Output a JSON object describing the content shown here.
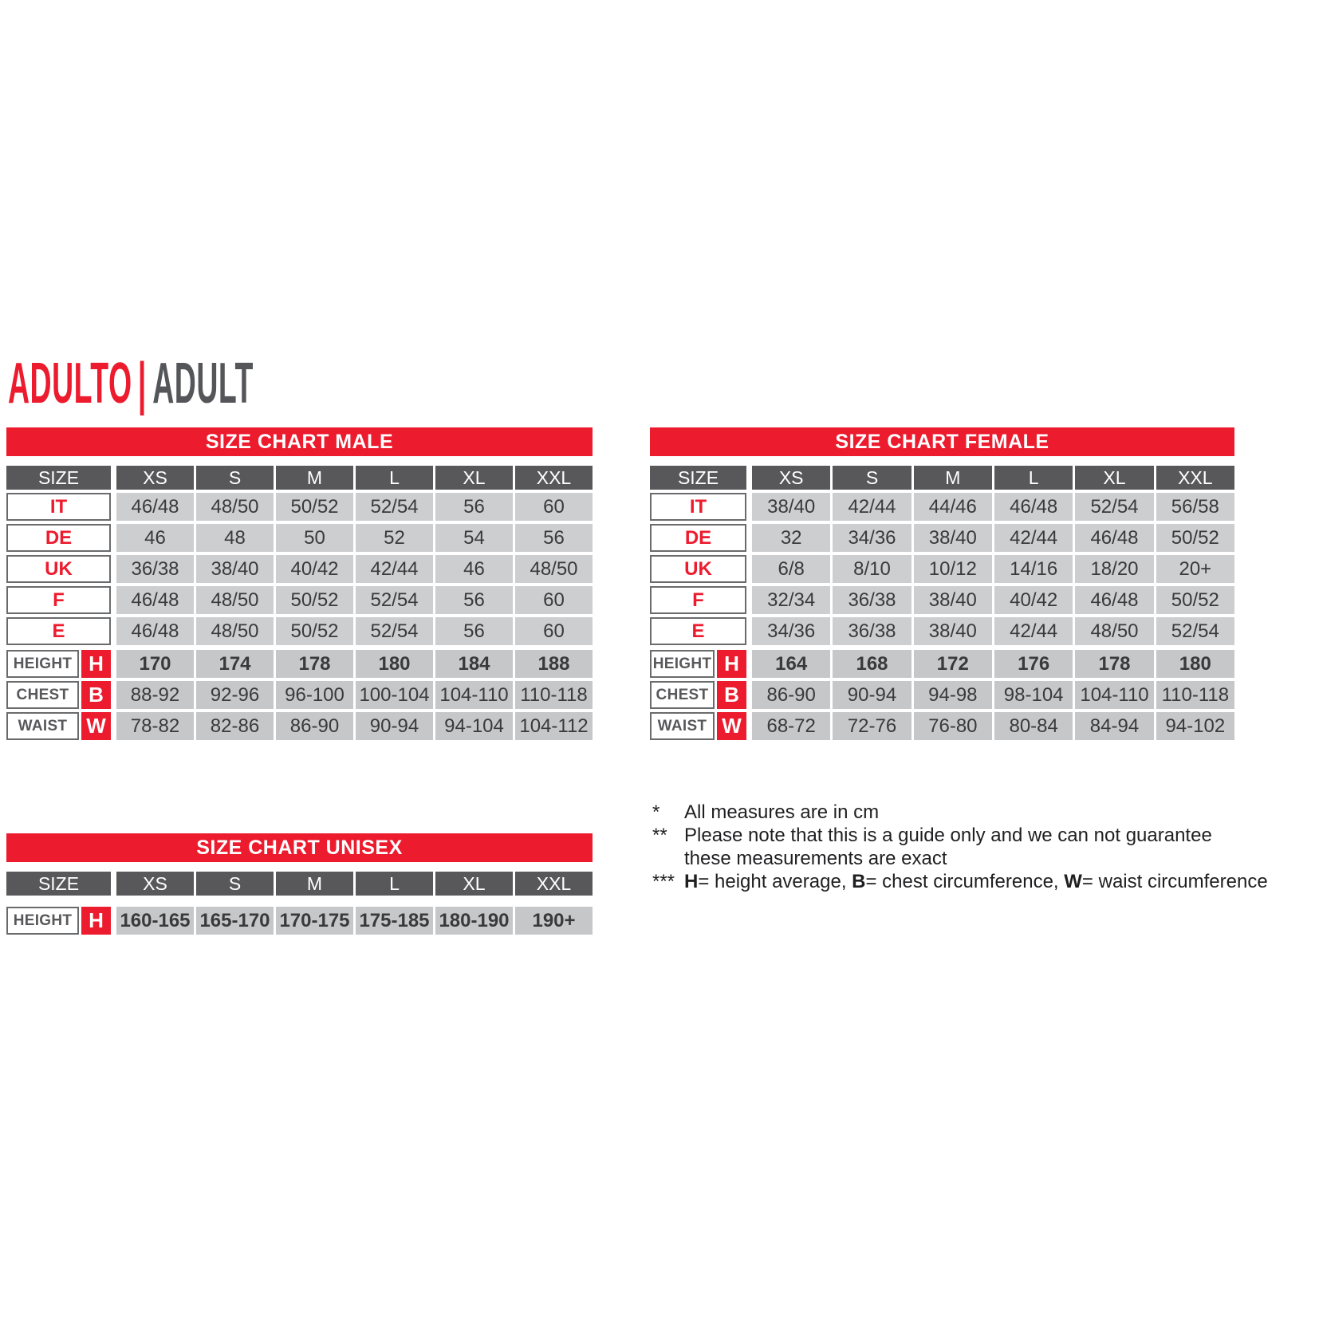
{
  "title": {
    "primary": "ADULTO",
    "separator": "|",
    "secondary": "ADULT"
  },
  "colors": {
    "accent_red": "#ED1B2E",
    "header_gray": "#58585B",
    "cell_gray": "#CDCED0",
    "measure_cell_gray": "#C6C7C9",
    "label_border_gray": "#6A6B6D",
    "cell_text": "#3A3A3C"
  },
  "columns": [
    "SIZE",
    "XS",
    "S",
    "M",
    "L",
    "XL",
    "XXL"
  ],
  "tables": {
    "male": {
      "title": "SIZE CHART MALE",
      "size_rows": [
        {
          "label": "IT",
          "values": [
            "46/48",
            "48/50",
            "50/52",
            "52/54",
            "56",
            "60"
          ]
        },
        {
          "label": "DE",
          "values": [
            "46",
            "48",
            "50",
            "52",
            "54",
            "56"
          ]
        },
        {
          "label": "UK",
          "values": [
            "36/38",
            "38/40",
            "40/42",
            "42/44",
            "46",
            "48/50"
          ]
        },
        {
          "label": "F",
          "values": [
            "46/48",
            "48/50",
            "50/52",
            "52/54",
            "56",
            "60"
          ]
        },
        {
          "label": "E",
          "values": [
            "46/48",
            "48/50",
            "50/52",
            "52/54",
            "56",
            "60"
          ]
        }
      ],
      "measure_rows": [
        {
          "label": "HEIGHT",
          "letter": "H",
          "bold": true,
          "values": [
            "170",
            "174",
            "178",
            "180",
            "184",
            "188"
          ]
        },
        {
          "label": "CHEST",
          "letter": "B",
          "bold": false,
          "values": [
            "88-92",
            "92-96",
            "96-100",
            "100-104",
            "104-110",
            "110-118"
          ]
        },
        {
          "label": "WAIST",
          "letter": "W",
          "bold": false,
          "values": [
            "78-82",
            "82-86",
            "86-90",
            "90-94",
            "94-104",
            "104-112"
          ]
        }
      ]
    },
    "female": {
      "title": "SIZE CHART FEMALE",
      "size_rows": [
        {
          "label": "IT",
          "values": [
            "38/40",
            "42/44",
            "44/46",
            "46/48",
            "52/54",
            "56/58"
          ]
        },
        {
          "label": "DE",
          "values": [
            "32",
            "34/36",
            "38/40",
            "42/44",
            "46/48",
            "50/52"
          ]
        },
        {
          "label": "UK",
          "values": [
            "6/8",
            "8/10",
            "10/12",
            "14/16",
            "18/20",
            "20+"
          ]
        },
        {
          "label": "F",
          "values": [
            "32/34",
            "36/38",
            "38/40",
            "40/42",
            "46/48",
            "50/52"
          ]
        },
        {
          "label": "E",
          "values": [
            "34/36",
            "36/38",
            "38/40",
            "42/44",
            "48/50",
            "52/54"
          ]
        }
      ],
      "measure_rows": [
        {
          "label": "HEIGHT",
          "letter": "H",
          "bold": true,
          "values": [
            "164",
            "168",
            "172",
            "176",
            "178",
            "180"
          ]
        },
        {
          "label": "CHEST",
          "letter": "B",
          "bold": false,
          "values": [
            "86-90",
            "90-94",
            "94-98",
            "98-104",
            "104-110",
            "110-118"
          ]
        },
        {
          "label": "WAIST",
          "letter": "W",
          "bold": false,
          "values": [
            "68-72",
            "72-76",
            "76-80",
            "80-84",
            "84-94",
            "94-102"
          ]
        }
      ]
    },
    "unisex": {
      "title": "SIZE CHART UNISEX",
      "size_rows": [],
      "measure_rows": [
        {
          "label": "HEIGHT",
          "letter": "H",
          "bold": true,
          "values": [
            "160-165",
            "165-170",
            "170-175",
            "175-185",
            "180-190",
            "190+"
          ]
        }
      ]
    }
  },
  "notes": [
    {
      "marker": "*",
      "parts": [
        {
          "t": "All measures are in cm",
          "b": false
        }
      ]
    },
    {
      "marker": "**",
      "parts": [
        {
          "t": "Please note that this is a guide only and we can not guarantee these measurements are exact",
          "b": false
        }
      ]
    },
    {
      "marker": "***",
      "parts": [
        {
          "t": "H",
          "b": true
        },
        {
          "t": "= height average, ",
          "b": false
        },
        {
          "t": "B",
          "b": true
        },
        {
          "t": "= chest circumference, ",
          "b": false
        },
        {
          "t": "W",
          "b": true
        },
        {
          "t": "= waist circumference",
          "b": false
        }
      ]
    }
  ]
}
